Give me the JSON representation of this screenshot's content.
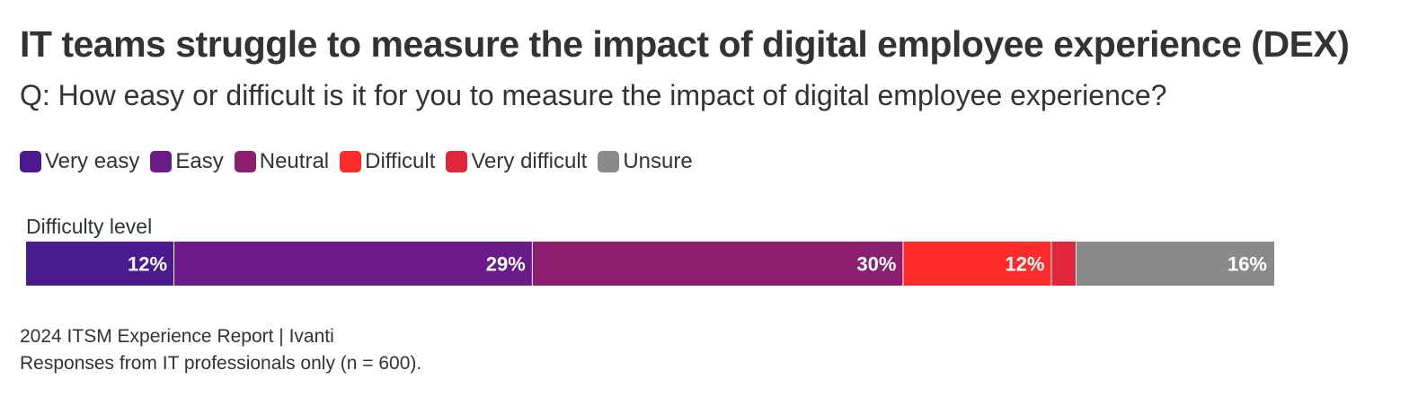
{
  "title": "IT teams struggle to measure the impact of digital employee experience (DEX)",
  "subtitle": "Q: How easy or difficult is it for you to measure the impact of digital employee experience?",
  "footer": {
    "source": "2024 ITSM Experience Report | Ivanti",
    "note": "Responses from IT professionals only (n = 600)."
  },
  "chart_data": {
    "type": "bar",
    "orientation": "horizontal",
    "stacked": true,
    "categories": [
      "Difficulty level"
    ],
    "series": [
      {
        "name": "Very easy",
        "values": [
          12
        ],
        "color": "#4b1a8f",
        "label": "12%"
      },
      {
        "name": "Easy",
        "values": [
          29
        ],
        "color": "#6a1b8a",
        "label": "29%"
      },
      {
        "name": "Neutral",
        "values": [
          30
        ],
        "color": "#8b1e6e",
        "label": "30%"
      },
      {
        "name": "Difficult",
        "values": [
          12
        ],
        "color": "#ff2a2a",
        "label": "12%"
      },
      {
        "name": "Very difficult",
        "values": [
          2
        ],
        "color": "#e0263a",
        "label": ""
      },
      {
        "name": "Unsure",
        "values": [
          16
        ],
        "color": "#8a8a8a",
        "label": "16%"
      }
    ],
    "legend": "top-left",
    "grid": false
  }
}
